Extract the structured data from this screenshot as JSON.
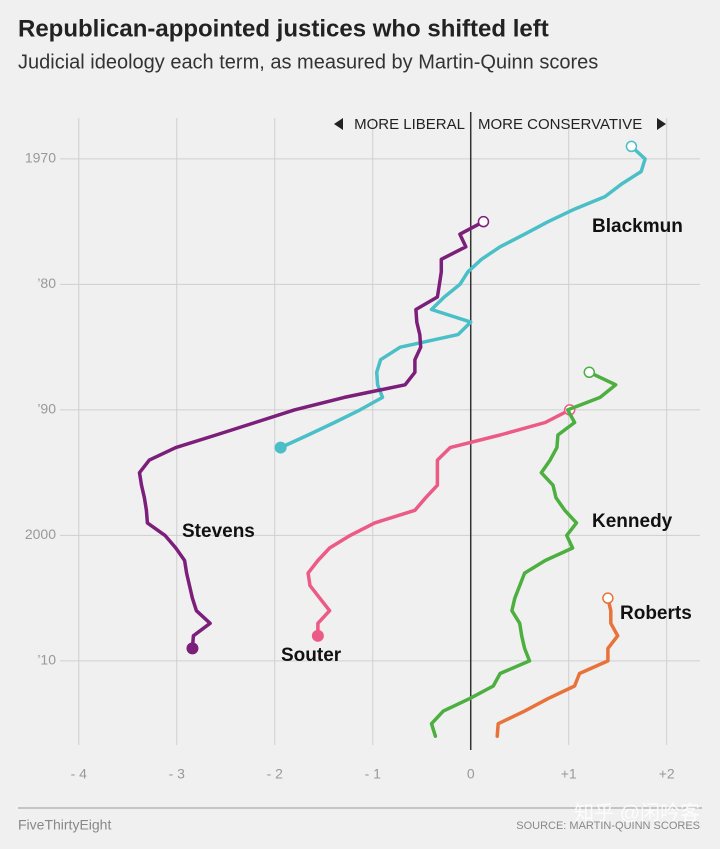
{
  "chart_data": {
    "type": "line",
    "title": "Republican-appointed justices who shifted left",
    "subtitle": "Judicial ideology each term, as measured by Martin-Quinn scores",
    "annotations": {
      "left": "MORE LIBERAL",
      "right": "MORE CONSERVATIVE"
    },
    "footer": {
      "brand": "FiveThirtyEight",
      "source": "SOURCE: MARTIN-QUINN SCORES",
      "watermark": "知乎 @闲吟客"
    },
    "xlim": [
      -4.6,
      2.34
    ],
    "xticks": [
      {
        "value": -4,
        "label": "- 4"
      },
      {
        "value": -3,
        "label": "- 3"
      },
      {
        "value": -2,
        "label": "- 2"
      },
      {
        "value": -1,
        "label": "- 1"
      },
      0,
      {
        "value": 1,
        "label": "+1"
      },
      {
        "value": 2,
        "label": "+2"
      }
    ],
    "ylim": [
      1966.5,
      2016.7
    ],
    "y_inverted": true,
    "yticks": [
      1970,
      {
        "value": 1980,
        "label": "’80"
      },
      {
        "value": 1990,
        "label": "’90"
      },
      2000,
      {
        "value": 2010,
        "label": "’10"
      }
    ],
    "grid": true,
    "series": [
      {
        "name": "Blackmun",
        "color": "#4bbfc7",
        "end_marker": "filled",
        "years": [
          1969,
          1970,
          1971,
          1972,
          1973,
          1974,
          1975,
          1976,
          1977,
          1978,
          1979,
          1980,
          1981,
          1982,
          1983,
          1984,
          1985,
          1986,
          1987,
          1988,
          1989,
          1990,
          1991,
          1992,
          1993
        ],
        "values": [
          1.64,
          1.78,
          1.74,
          1.54,
          1.37,
          1.06,
          0.79,
          0.55,
          0.3,
          0.11,
          -0.03,
          -0.11,
          -0.27,
          -0.4,
          0.0,
          -0.13,
          -0.72,
          -0.92,
          -0.96,
          -0.95,
          -0.9,
          -1.13,
          -1.39,
          -1.66,
          -1.94
        ]
      },
      {
        "name": "Stevens",
        "color": "#7b1f7a",
        "end_marker": "filled",
        "years": [
          1975,
          1976,
          1977,
          1978,
          1979,
          1980,
          1981,
          1982,
          1983,
          1984,
          1985,
          1986,
          1987,
          1988,
          1989,
          1990,
          1991,
          1992,
          1993,
          1994,
          1995,
          1996,
          1997,
          1998,
          1999,
          2000,
          2001,
          2002,
          2003,
          2004,
          2005,
          2006,
          2007,
          2008,
          2009
        ],
        "values": [
          0.13,
          -0.11,
          -0.05,
          -0.3,
          -0.3,
          -0.32,
          -0.34,
          -0.56,
          -0.55,
          -0.52,
          -0.51,
          -0.57,
          -0.57,
          -0.67,
          -1.29,
          -1.8,
          -2.2,
          -2.6,
          -3.01,
          -3.28,
          -3.38,
          -3.36,
          -3.33,
          -3.31,
          -3.3,
          -3.12,
          -3.01,
          -2.92,
          -2.9,
          -2.87,
          -2.84,
          -2.8,
          -2.66,
          -2.83,
          -2.84
        ]
      },
      {
        "name": "Souter",
        "color": "#ec5a86",
        "end_marker": "filled",
        "years": [
          1990,
          1991,
          1992,
          1993,
          1994,
          1995,
          1996,
          1997,
          1998,
          1999,
          2000,
          2001,
          2002,
          2003,
          2004,
          2005,
          2006,
          2007,
          2008
        ],
        "values": [
          1.01,
          0.76,
          0.3,
          -0.21,
          -0.34,
          -0.34,
          -0.34,
          -0.46,
          -0.57,
          -0.98,
          -1.23,
          -1.44,
          -1.56,
          -1.66,
          -1.64,
          -1.54,
          -1.44,
          -1.56,
          -1.56
        ]
      },
      {
        "name": "Kennedy",
        "color": "#4caf40",
        "years": [
          1987,
          1988,
          1989,
          1990,
          1991,
          1992,
          1993,
          1994,
          1995,
          1996,
          1997,
          1998,
          1999,
          2000,
          2001,
          2002,
          2003,
          2004,
          2005,
          2006,
          2007,
          2008,
          2009,
          2010,
          2011,
          2012,
          2013,
          2014,
          2015,
          2016
        ],
        "values": [
          1.21,
          1.48,
          1.32,
          0.99,
          1.06,
          0.89,
          0.88,
          0.81,
          0.72,
          0.84,
          0.87,
          0.96,
          1.08,
          0.98,
          1.04,
          0.76,
          0.55,
          0.5,
          0.45,
          0.42,
          0.5,
          0.52,
          0.55,
          0.6,
          0.3,
          0.23,
          -0.01,
          -0.28,
          -0.4,
          -0.36
        ]
      },
      {
        "name": "Roberts",
        "color": "#e8733a",
        "years": [
          2005,
          2006,
          2007,
          2008,
          2009,
          2010,
          2011,
          2012,
          2013,
          2014,
          2015,
          2016
        ],
        "values": [
          1.4,
          1.43,
          1.43,
          1.5,
          1.4,
          1.4,
          1.11,
          1.06,
          0.79,
          0.55,
          0.28,
          0.27
        ]
      }
    ]
  }
}
